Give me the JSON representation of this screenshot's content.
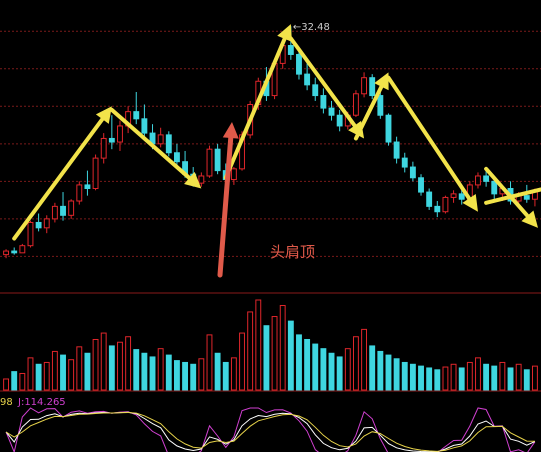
{
  "chart_data": {
    "type": "candlestick",
    "price_panel": {
      "ylim": [
        18.0,
        33.5
      ],
      "max_label": "32.48",
      "max_label_prefix": "←",
      "annotation": "头肩顶",
      "grid_levels": [
        32.2,
        30.1,
        28.0,
        25.9,
        23.8,
        21.7,
        19.6
      ]
    },
    "candles": [
      {
        "o": 19.7,
        "h": 20.0,
        "l": 19.5,
        "c": 19.9
      },
      {
        "o": 19.9,
        "h": 20.1,
        "l": 19.7,
        "c": 19.8
      },
      {
        "o": 19.8,
        "h": 20.3,
        "l": 19.8,
        "c": 20.2
      },
      {
        "o": 20.2,
        "h": 21.6,
        "l": 20.1,
        "c": 21.5
      },
      {
        "o": 21.5,
        "h": 22.0,
        "l": 21.0,
        "c": 21.2
      },
      {
        "o": 21.2,
        "h": 21.9,
        "l": 20.9,
        "c": 21.7
      },
      {
        "o": 21.7,
        "h": 22.6,
        "l": 21.5,
        "c": 22.4
      },
      {
        "o": 22.4,
        "h": 23.2,
        "l": 21.6,
        "c": 21.9
      },
      {
        "o": 21.9,
        "h": 22.8,
        "l": 21.7,
        "c": 22.7
      },
      {
        "o": 22.7,
        "h": 23.8,
        "l": 22.5,
        "c": 23.6
      },
      {
        "o": 23.6,
        "h": 24.4,
        "l": 23.0,
        "c": 23.4
      },
      {
        "o": 23.4,
        "h": 25.3,
        "l": 23.3,
        "c": 25.1
      },
      {
        "o": 25.1,
        "h": 26.5,
        "l": 24.8,
        "c": 26.2
      },
      {
        "o": 26.2,
        "h": 27.5,
        "l": 25.6,
        "c": 26.0
      },
      {
        "o": 26.0,
        "h": 27.2,
        "l": 25.5,
        "c": 26.9
      },
      {
        "o": 26.9,
        "h": 28.0,
        "l": 26.5,
        "c": 27.7
      },
      {
        "o": 27.7,
        "h": 28.8,
        "l": 27.0,
        "c": 27.3
      },
      {
        "o": 27.3,
        "h": 28.1,
        "l": 26.2,
        "c": 26.5
      },
      {
        "o": 26.5,
        "h": 27.0,
        "l": 25.6,
        "c": 25.9
      },
      {
        "o": 25.9,
        "h": 26.8,
        "l": 25.7,
        "c": 26.4
      },
      {
        "o": 26.4,
        "h": 26.6,
        "l": 25.2,
        "c": 25.4
      },
      {
        "o": 25.4,
        "h": 25.9,
        "l": 24.6,
        "c": 24.9
      },
      {
        "o": 24.9,
        "h": 25.5,
        "l": 24.0,
        "c": 24.2
      },
      {
        "o": 24.2,
        "h": 24.6,
        "l": 23.5,
        "c": 23.7
      },
      {
        "o": 23.7,
        "h": 24.3,
        "l": 23.5,
        "c": 24.1
      },
      {
        "o": 24.1,
        "h": 25.8,
        "l": 24.0,
        "c": 25.6
      },
      {
        "o": 25.6,
        "h": 25.9,
        "l": 24.2,
        "c": 24.4
      },
      {
        "o": 24.4,
        "h": 24.8,
        "l": 23.6,
        "c": 23.9
      },
      {
        "o": 23.9,
        "h": 24.6,
        "l": 23.6,
        "c": 24.5
      },
      {
        "o": 24.5,
        "h": 26.6,
        "l": 24.4,
        "c": 26.4
      },
      {
        "o": 26.4,
        "h": 28.3,
        "l": 26.2,
        "c": 28.1
      },
      {
        "o": 28.1,
        "h": 29.6,
        "l": 27.8,
        "c": 29.4
      },
      {
        "o": 29.4,
        "h": 30.2,
        "l": 28.3,
        "c": 28.6
      },
      {
        "o": 28.6,
        "h": 30.6,
        "l": 28.4,
        "c": 30.4
      },
      {
        "o": 30.4,
        "h": 31.6,
        "l": 30.1,
        "c": 31.4
      },
      {
        "o": 31.4,
        "h": 32.48,
        "l": 30.6,
        "c": 30.9
      },
      {
        "o": 30.9,
        "h": 31.2,
        "l": 29.5,
        "c": 29.8
      },
      {
        "o": 29.8,
        "h": 30.4,
        "l": 28.9,
        "c": 29.2
      },
      {
        "o": 29.2,
        "h": 29.6,
        "l": 28.3,
        "c": 28.6
      },
      {
        "o": 28.6,
        "h": 29.0,
        "l": 27.6,
        "c": 27.9
      },
      {
        "o": 27.9,
        "h": 28.3,
        "l": 27.2,
        "c": 27.5
      },
      {
        "o": 27.5,
        "h": 27.8,
        "l": 26.6,
        "c": 26.9
      },
      {
        "o": 26.9,
        "h": 27.7,
        "l": 26.7,
        "c": 27.5
      },
      {
        "o": 27.5,
        "h": 28.9,
        "l": 27.4,
        "c": 28.7
      },
      {
        "o": 28.7,
        "h": 29.9,
        "l": 28.5,
        "c": 29.6
      },
      {
        "o": 29.6,
        "h": 29.8,
        "l": 28.4,
        "c": 28.6
      },
      {
        "o": 28.6,
        "h": 28.8,
        "l": 27.3,
        "c": 27.5
      },
      {
        "o": 27.5,
        "h": 27.6,
        "l": 25.8,
        "c": 26.0
      },
      {
        "o": 26.0,
        "h": 26.3,
        "l": 24.8,
        "c": 25.1
      },
      {
        "o": 25.1,
        "h": 25.4,
        "l": 24.3,
        "c": 24.6
      },
      {
        "o": 24.6,
        "h": 24.9,
        "l": 23.8,
        "c": 24.0
      },
      {
        "o": 24.0,
        "h": 24.2,
        "l": 23.0,
        "c": 23.2
      },
      {
        "o": 23.2,
        "h": 23.4,
        "l": 22.2,
        "c": 22.4
      },
      {
        "o": 22.4,
        "h": 22.7,
        "l": 21.8,
        "c": 22.1
      },
      {
        "o": 22.1,
        "h": 23.0,
        "l": 22.0,
        "c": 22.9
      },
      {
        "o": 22.9,
        "h": 23.3,
        "l": 22.6,
        "c": 23.1
      },
      {
        "o": 23.1,
        "h": 23.5,
        "l": 22.5,
        "c": 22.8
      },
      {
        "o": 22.8,
        "h": 23.8,
        "l": 22.7,
        "c": 23.6
      },
      {
        "o": 23.6,
        "h": 24.3,
        "l": 23.4,
        "c": 24.1
      },
      {
        "o": 24.1,
        "h": 24.6,
        "l": 23.5,
        "c": 23.8
      },
      {
        "o": 23.8,
        "h": 24.0,
        "l": 22.8,
        "c": 23.1
      },
      {
        "o": 23.1,
        "h": 23.6,
        "l": 22.7,
        "c": 23.4
      },
      {
        "o": 23.4,
        "h": 23.8,
        "l": 22.5,
        "c": 22.7
      },
      {
        "o": 22.7,
        "h": 23.2,
        "l": 22.3,
        "c": 23.0
      },
      {
        "o": 23.0,
        "h": 23.6,
        "l": 22.6,
        "c": 22.8
      },
      {
        "o": 22.8,
        "h": 23.4,
        "l": 22.4,
        "c": 23.2
      }
    ],
    "volume": [
      12,
      20,
      18,
      35,
      28,
      30,
      42,
      38,
      33,
      47,
      40,
      55,
      62,
      48,
      52,
      58,
      44,
      40,
      36,
      45,
      38,
      32,
      30,
      28,
      34,
      60,
      40,
      30,
      35,
      62,
      85,
      98,
      70,
      80,
      92,
      75,
      60,
      55,
      50,
      45,
      40,
      36,
      45,
      58,
      66,
      48,
      42,
      38,
      34,
      30,
      28,
      26,
      24,
      22,
      25,
      28,
      24,
      30,
      35,
      28,
      26,
      30,
      24,
      28,
      22,
      26
    ],
    "volume_colors_up_down": "up=red, down=cyan",
    "kdj_label": "J:114.265",
    "kdj_label_left": "98"
  },
  "colors": {
    "background": "#000000",
    "up": "#e0262b",
    "down": "#3fd6e0",
    "arrow": "#f2e34a",
    "annotation": "#e05a4a",
    "grid": "#7a1a1a",
    "label": "#cccccc",
    "j_line": "#d040d0",
    "k_line": "#ffffff",
    "d_line": "#e6d24a"
  }
}
